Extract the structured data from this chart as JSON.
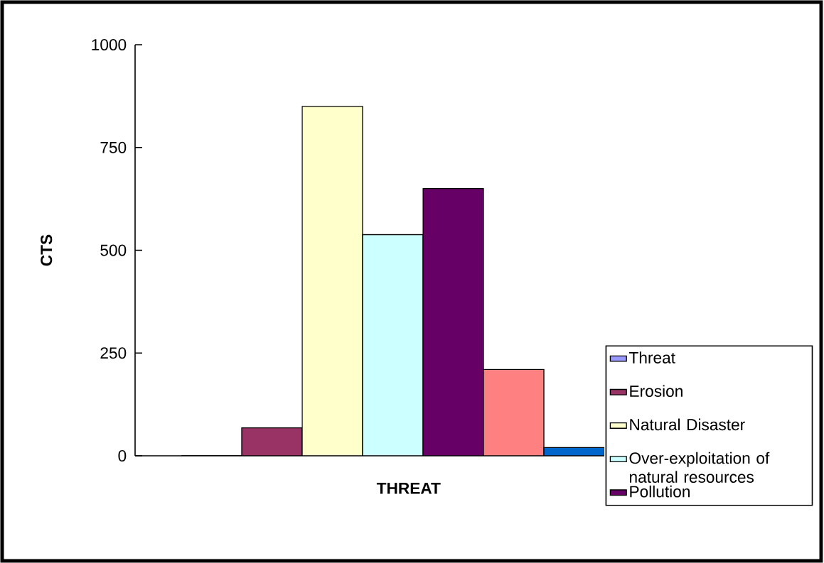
{
  "chart_data": {
    "type": "bar",
    "xlabel": "THREAT",
    "ylabel": "CTS",
    "categories": [
      null
    ],
    "series": [
      {
        "name": "Threat",
        "color": "#9999ff",
        "values": [
          0
        ]
      },
      {
        "name": "Erosion",
        "color": "#993366",
        "values": [
          68
        ]
      },
      {
        "name": "Natural Disaster",
        "color": "#ffffcc",
        "values": [
          850
        ]
      },
      {
        "name": "Over-exploitation of natural resources",
        "color": "#ccffff",
        "values": [
          538
        ]
      },
      {
        "name": "Pollution",
        "color": "#660066",
        "values": [
          650
        ]
      },
      {
        "color": "#ff8080",
        "values": [
          210
        ]
      },
      {
        "color": "#0066cc",
        "values": [
          20
        ]
      }
    ],
    "ylim": [
      0,
      1000
    ],
    "yticks": [
      0,
      250,
      500,
      750,
      1000
    ],
    "legend": "bottom right",
    "tick_labels": "y"
  }
}
